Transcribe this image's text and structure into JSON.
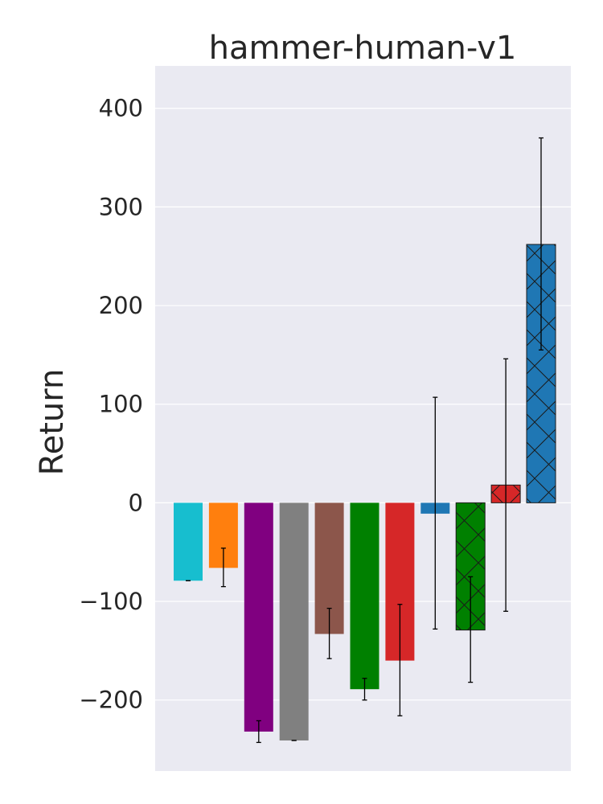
{
  "chart_data": {
    "type": "bar",
    "title": "hammer-human-v1",
    "xlabel": "",
    "ylabel": "Return",
    "ylim": [
      -272,
      443
    ],
    "yticks": [
      -200,
      -100,
      0,
      100,
      200,
      300,
      400
    ],
    "ytick_labels": [
      "−200",
      "−100",
      "0",
      "100",
      "200",
      "300",
      "400"
    ],
    "grid": true,
    "legend": "none",
    "bars": [
      {
        "value": -79,
        "error_low": -79,
        "error_high": -79,
        "color": "#17becf",
        "hatch": false
      },
      {
        "value": -66,
        "error_low": -85,
        "error_high": -46,
        "color": "#ff7f0e",
        "hatch": false
      },
      {
        "value": -232,
        "error_low": -243,
        "error_high": -221,
        "color": "#800080",
        "hatch": false
      },
      {
        "value": -241,
        "error_low": -241,
        "error_high": -241,
        "color": "#808080",
        "hatch": false
      },
      {
        "value": -133,
        "error_low": -158,
        "error_high": -107,
        "color": "#8c564b",
        "hatch": false
      },
      {
        "value": -189,
        "error_low": -200,
        "error_high": -178,
        "color": "#008000",
        "hatch": false
      },
      {
        "value": -160,
        "error_low": -216,
        "error_high": -103,
        "color": "#d62728",
        "hatch": false
      },
      {
        "value": -11,
        "error_low": -128,
        "error_high": 107,
        "color": "#1f77b4",
        "hatch": false
      },
      {
        "value": -129,
        "error_low": -182,
        "error_high": -75,
        "color": "#008000",
        "hatch": true
      },
      {
        "value": 18,
        "error_low": -110,
        "error_high": 146,
        "color": "#d62728",
        "hatch": true
      },
      {
        "value": 262,
        "error_low": 155,
        "error_high": 370,
        "color": "#1f77b4",
        "hatch": true
      }
    ]
  }
}
